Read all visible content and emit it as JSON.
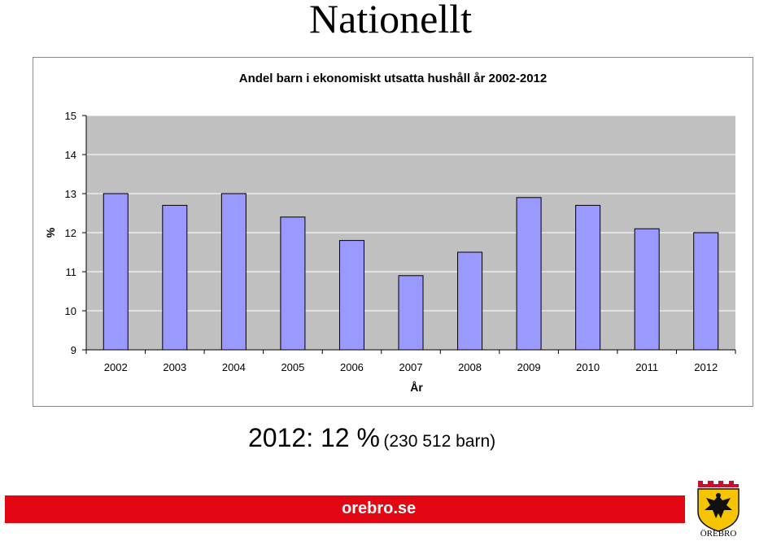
{
  "slide": {
    "title": "Nationellt",
    "summary_main": "2012: 12 %",
    "summary_detail": "(230 512 barn)",
    "footer_site": "orebro.se",
    "logo_text": "ÖREBRO",
    "accent_color": "#e30613"
  },
  "chart_data": {
    "type": "bar",
    "title": "Andel barn i ekonomiskt utsatta hushåll år 2002-2012",
    "xlabel": "År",
    "ylabel": "%",
    "categories": [
      "2002",
      "2003",
      "2004",
      "2005",
      "2006",
      "2007",
      "2008",
      "2009",
      "2010",
      "2011",
      "2012"
    ],
    "values": [
      13.0,
      12.7,
      13.0,
      12.4,
      11.8,
      10.9,
      11.5,
      12.9,
      12.7,
      12.1,
      12.0
    ],
    "ylim": [
      9,
      15
    ],
    "yticks": [
      "9",
      "10",
      "11",
      "12",
      "13",
      "14",
      "15"
    ],
    "grid": true,
    "legend": "none",
    "bar_color": "#9999ff",
    "plot_background": "#c0c0c0"
  }
}
